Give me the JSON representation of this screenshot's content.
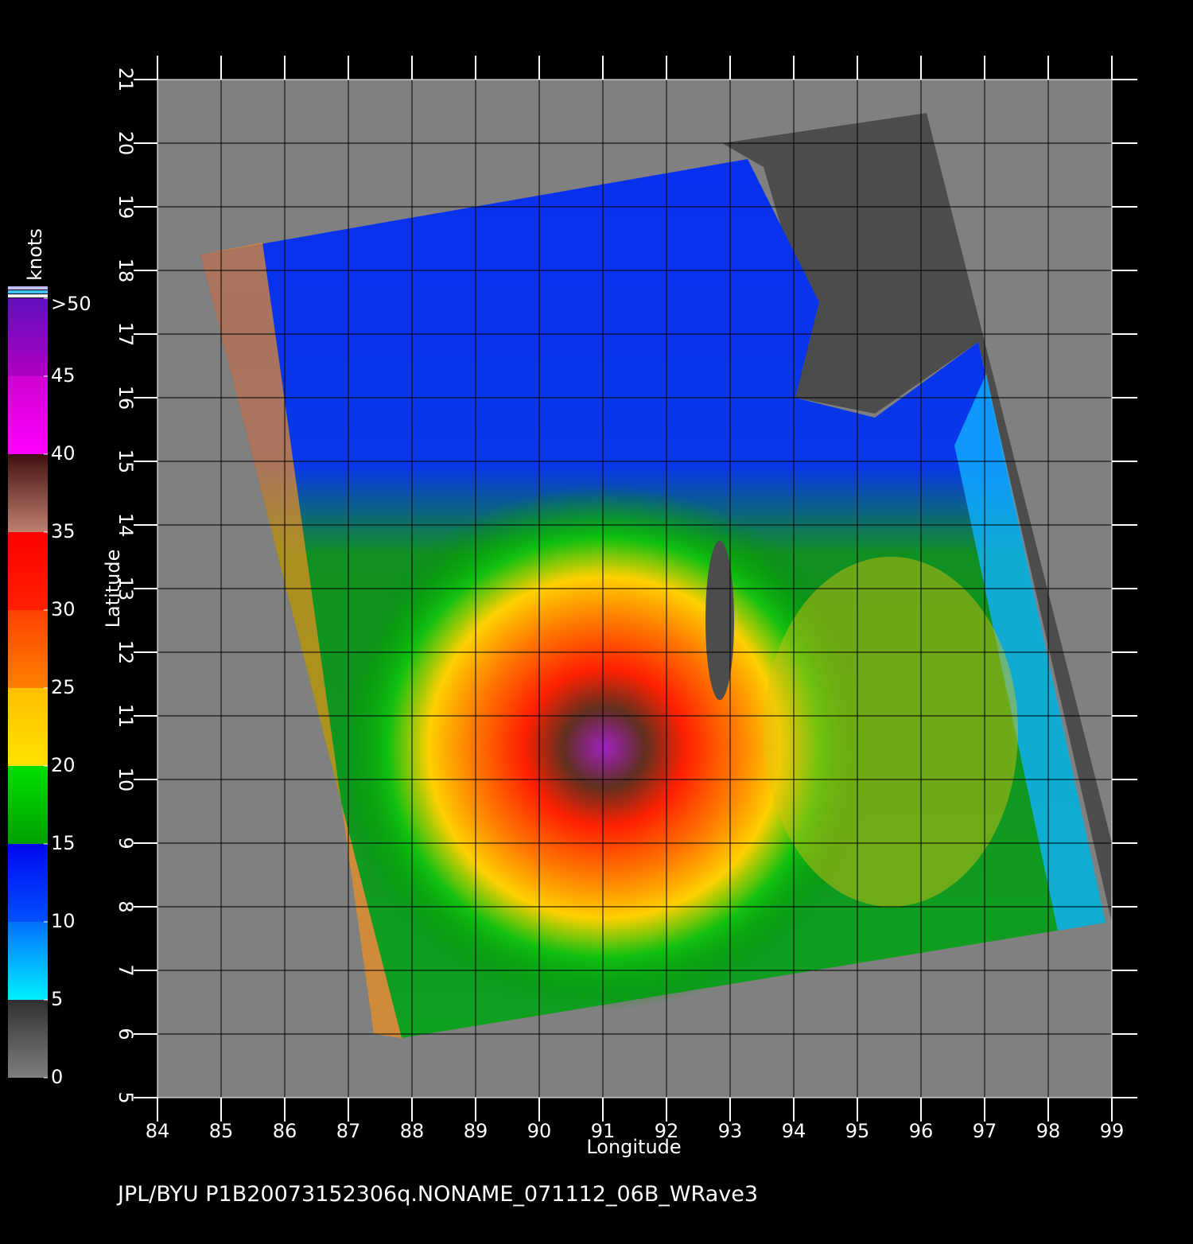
{
  "map": {
    "x_label": "Longitude",
    "y_label": "Latitude",
    "xlim": [
      84,
      99
    ],
    "ylim": [
      5,
      21
    ],
    "xticks": [
      84,
      85,
      86,
      87,
      88,
      89,
      90,
      91,
      92,
      93,
      94,
      95,
      96,
      97,
      98,
      99
    ],
    "yticks": [
      5,
      6,
      7,
      8,
      9,
      10,
      11,
      12,
      13,
      14,
      15,
      16,
      17,
      18,
      19,
      20,
      21
    ],
    "colorbar": {
      "title": "knots",
      "lim": [
        0,
        50
      ],
      "ticks": [
        0,
        5,
        10,
        15,
        20,
        25,
        30,
        35,
        40,
        45,
        {
          "value": 50,
          "label": ">50"
        }
      ],
      "colors": [
        "#7e7e7e",
        "#303030",
        "#00f0ff",
        "#0070ff",
        "#0050ff",
        "#0008ee",
        "#00a000",
        "#00e000",
        "#ffe000",
        "#ffc000",
        "#ff8000",
        "#ff4000",
        "#ff2000",
        "#ff0000",
        "#c08070",
        "#401010",
        "#ff00ff",
        "#d000d0",
        "#b000c0",
        "#6010c0"
      ]
    },
    "footer": "JPL/BYU  P1B20073152306q.NONAME_071112_06B_WRave3"
  }
}
